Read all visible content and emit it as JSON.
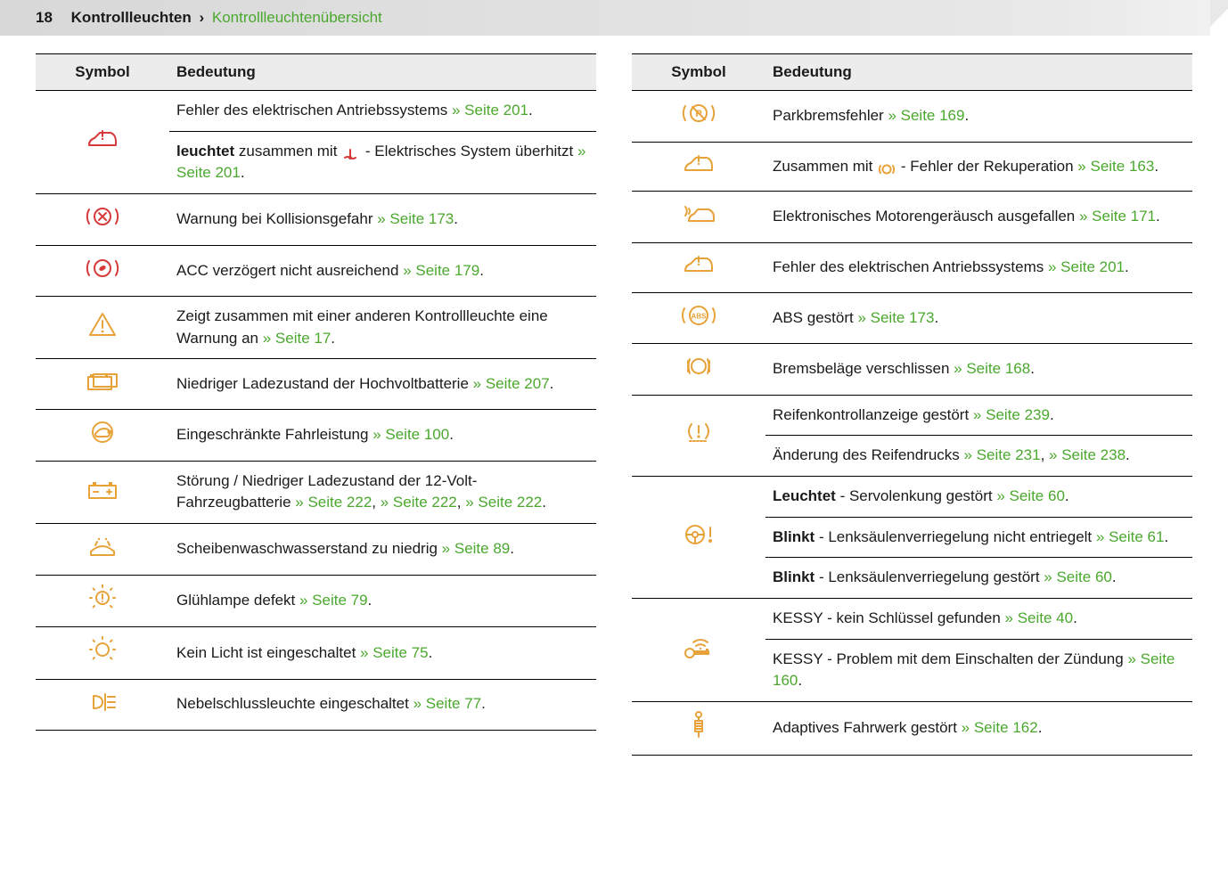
{
  "header": {
    "page_number": "18",
    "section": "Kontrollleuchten",
    "chevron": "›",
    "subsection": "Kontrollleuchtenübersicht"
  },
  "columns_header": {
    "symbol": "Symbol",
    "meaning": "Bedeutung"
  },
  "colors": {
    "red": "#d73a3a",
    "amber": "#e8a23a",
    "green": "#4ba82e",
    "header_bg": "#ececec",
    "border": "#000000"
  },
  "left": [
    {
      "icon": "car-warning",
      "icon_color": "#d73a3a",
      "rowspan": 2,
      "segments": [
        {
          "text": "Fehler des elektrischen Antriebssystems "
        },
        {
          "link": "Seite 201"
        },
        {
          "text": "."
        }
      ]
    },
    {
      "segments": [
        {
          "bold": "leuchtet"
        },
        {
          "text": " zusammen mit "
        },
        {
          "inline_icon": "temp",
          "inline_color": "#d73a3a"
        },
        {
          "text": " - Elektrisches System überhitzt "
        },
        {
          "link": "Seite 201"
        },
        {
          "text": "."
        }
      ]
    },
    {
      "icon": "brake-collision",
      "icon_color": "#d73a3a",
      "segments": [
        {
          "text": "Warnung bei Kollisionsgefahr "
        },
        {
          "link": "Seite 173"
        },
        {
          "text": "."
        }
      ]
    },
    {
      "icon": "brake-acc",
      "icon_color": "#d73a3a",
      "segments": [
        {
          "text": "ACC verzögert nicht ausreichend "
        },
        {
          "link": "Seite 179"
        },
        {
          "text": "."
        }
      ]
    },
    {
      "icon": "triangle",
      "icon_color": "#e8a23a",
      "segments": [
        {
          "text": "Zeigt zusammen mit einer anderen Kontrollleuchte eine Warnung an "
        },
        {
          "link": "Seite 17"
        },
        {
          "text": "."
        }
      ]
    },
    {
      "icon": "battery-low",
      "icon_color": "#e8a23a",
      "segments": [
        {
          "text": "Niedriger Ladezustand der Hochvoltbatterie "
        },
        {
          "link": "Seite 207"
        },
        {
          "text": "."
        }
      ]
    },
    {
      "icon": "turtle",
      "icon_color": "#e8a23a",
      "segments": [
        {
          "text": "Eingeschränkte Fahrleistung "
        },
        {
          "link": "Seite 100"
        },
        {
          "text": "."
        }
      ]
    },
    {
      "icon": "battery-12v",
      "icon_color": "#e8a23a",
      "segments": [
        {
          "text": "Störung / Niedriger Ladezustand der 12-Volt-Fahrzeugbatterie "
        },
        {
          "link": "Seite 222"
        },
        {
          "text": ", "
        },
        {
          "link": "Seite 222"
        },
        {
          "text": ", "
        },
        {
          "link": "Seite 222"
        },
        {
          "text": "."
        }
      ]
    },
    {
      "icon": "washer",
      "icon_color": "#e8a23a",
      "segments": [
        {
          "text": "Scheibenwaschwasserstand zu niedrig "
        },
        {
          "link": "Seite 89"
        },
        {
          "text": "."
        }
      ]
    },
    {
      "icon": "bulb-warn",
      "icon_color": "#e8a23a",
      "segments": [
        {
          "text": "Glühlampe defekt "
        },
        {
          "link": "Seite 79"
        },
        {
          "text": "."
        }
      ]
    },
    {
      "icon": "bulb",
      "icon_color": "#e8a23a",
      "segments": [
        {
          "text": "Kein Licht ist eingeschaltet "
        },
        {
          "link": "Seite 75"
        },
        {
          "text": "."
        }
      ]
    },
    {
      "icon": "fog-rear",
      "icon_color": "#e8a23a",
      "segments": [
        {
          "text": "Nebelschlussleuchte eingeschaltet "
        },
        {
          "link": "Seite 77"
        },
        {
          "text": "."
        }
      ]
    }
  ],
  "right": [
    {
      "icon": "park-brake",
      "icon_color": "#e8a23a",
      "segments": [
        {
          "text": "Parkbremsfehler "
        },
        {
          "link": "Seite 169"
        },
        {
          "text": "."
        }
      ]
    },
    {
      "icon": "car-warning",
      "icon_color": "#e8a23a",
      "segments": [
        {
          "text": "Zusammen mit "
        },
        {
          "inline_icon": "brake-small",
          "inline_color": "#e8a23a"
        },
        {
          "text": " - Fehler der Rekuperation "
        },
        {
          "link": "Seite 163"
        },
        {
          "text": "."
        }
      ]
    },
    {
      "icon": "sound-car",
      "icon_color": "#e8a23a",
      "segments": [
        {
          "text": "Elektronisches Motorengeräusch ausgefallen "
        },
        {
          "link": "Seite 171"
        },
        {
          "text": "."
        }
      ]
    },
    {
      "icon": "car-warning",
      "icon_color": "#e8a23a",
      "segments": [
        {
          "text": "Fehler des elektrischen Antriebssystems "
        },
        {
          "link": "Seite 201"
        },
        {
          "text": "."
        }
      ]
    },
    {
      "icon": "abs",
      "icon_color": "#e8a23a",
      "segments": [
        {
          "text": "ABS gestört "
        },
        {
          "link": "Seite 173"
        },
        {
          "text": "."
        }
      ]
    },
    {
      "icon": "brake-pads",
      "icon_color": "#e8a23a",
      "segments": [
        {
          "text": "Bremsbeläge verschlissen "
        },
        {
          "link": "Seite 168"
        },
        {
          "text": "."
        }
      ]
    },
    {
      "icon": "tire",
      "icon_color": "#e8a23a",
      "rowspan": 2,
      "segments": [
        {
          "text": "Reifenkontrollanzeige gestört "
        },
        {
          "link": "Seite 239"
        },
        {
          "text": "."
        }
      ]
    },
    {
      "segments": [
        {
          "text": "Änderung des Reifendrucks "
        },
        {
          "link": "Seite 231"
        },
        {
          "text": ", "
        },
        {
          "link": "Seite 238"
        },
        {
          "text": "."
        }
      ]
    },
    {
      "icon": "steering",
      "icon_color": "#e8a23a",
      "rowspan": 3,
      "segments": [
        {
          "bold": "Leuchtet"
        },
        {
          "text": " - Servolenkung gestört "
        },
        {
          "link": "Seite 60"
        },
        {
          "text": "."
        }
      ]
    },
    {
      "segments": [
        {
          "bold": "Blinkt"
        },
        {
          "text": " - Lenksäulenverriegelung nicht entriegelt "
        },
        {
          "link": "Seite 61"
        },
        {
          "text": "."
        }
      ]
    },
    {
      "segments": [
        {
          "bold": "Blinkt"
        },
        {
          "text": " - Lenksäulenverriegelung gestört "
        },
        {
          "link": "Seite 60"
        },
        {
          "text": "."
        }
      ]
    },
    {
      "icon": "key-wifi",
      "icon_color": "#e8a23a",
      "rowspan": 2,
      "segments": [
        {
          "text": "KESSY - kein Schlüssel gefunden "
        },
        {
          "link": "Seite 40"
        },
        {
          "text": "."
        }
      ]
    },
    {
      "segments": [
        {
          "text": "KESSY - Problem mit dem Einschalten der Zündung "
        },
        {
          "link": "Seite 160"
        },
        {
          "text": "."
        }
      ]
    },
    {
      "icon": "shock",
      "icon_color": "#e8a23a",
      "segments": [
        {
          "text": "Adaptives Fahrwerk gestört "
        },
        {
          "link": "Seite 162"
        },
        {
          "text": "."
        }
      ]
    }
  ]
}
